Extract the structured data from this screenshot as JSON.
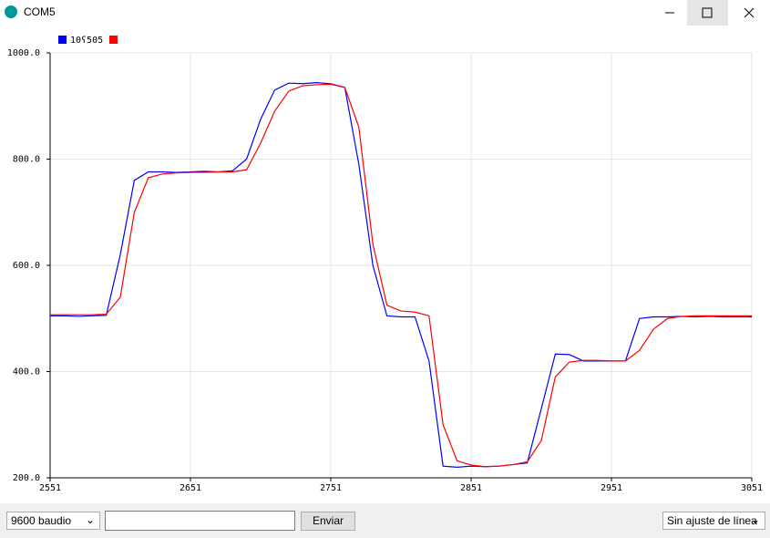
{
  "window": {
    "title": "COM5"
  },
  "chart_data": {
    "type": "line",
    "legend_label": "10ʕ505",
    "x": [
      2551,
      2561,
      2571,
      2581,
      2591,
      2601,
      2611,
      2621,
      2631,
      2641,
      2651,
      2661,
      2671,
      2681,
      2691,
      2701,
      2711,
      2721,
      2731,
      2741,
      2751,
      2761,
      2771,
      2781,
      2791,
      2801,
      2811,
      2821,
      2831,
      2841,
      2851,
      2861,
      2871,
      2881,
      2891,
      2901,
      2911,
      2921,
      2931,
      2941,
      2951,
      2961,
      2971,
      2981,
      2991,
      3001,
      3011,
      3021,
      3031,
      3041,
      3051
    ],
    "series": [
      {
        "color": "#0000ff",
        "values": [
          505,
          505,
          504,
          505,
          506,
          620,
          760,
          776,
          776,
          775,
          776,
          777,
          776,
          778,
          800,
          875,
          930,
          943,
          942,
          944,
          942,
          935,
          790,
          600,
          505,
          503,
          503,
          420,
          222,
          220,
          222,
          221,
          222,
          225,
          228,
          330,
          433,
          432,
          420,
          420,
          420,
          420,
          500,
          503,
          503,
          504,
          503,
          504,
          503,
          503,
          503
        ]
      },
      {
        "color": "#ff0000",
        "values": [
          507,
          507,
          507,
          507,
          508,
          540,
          700,
          765,
          772,
          774,
          775,
          775,
          776,
          776,
          780,
          830,
          890,
          928,
          938,
          940,
          941,
          935,
          860,
          640,
          525,
          514,
          512,
          505,
          300,
          232,
          224,
          221,
          222,
          225,
          230,
          270,
          390,
          418,
          421,
          421,
          420,
          420,
          440,
          480,
          500,
          504,
          505,
          505,
          505,
          505,
          505
        ]
      }
    ],
    "xlim": [
      2551,
      3051
    ],
    "xticks": [
      2551,
      2651,
      2751,
      2851,
      2951,
      3051
    ],
    "ylim": [
      200,
      1000
    ],
    "yticks": [
      {
        "value": 200,
        "label": "200.0"
      },
      {
        "value": 400,
        "label": "400.0"
      },
      {
        "value": 600,
        "label": "600.0"
      },
      {
        "value": 800,
        "label": "800.0"
      },
      {
        "value": 1000,
        "label": "1000.0"
      }
    ],
    "grid": true
  },
  "controls": {
    "baud": "9600 baudio",
    "send": "Enviar",
    "line_ending": "Sin ajuste de línea"
  }
}
